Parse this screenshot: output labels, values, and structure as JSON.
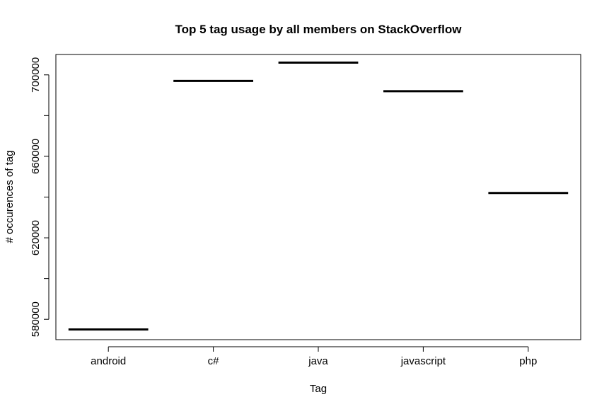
{
  "chart_data": {
    "type": "line",
    "title": "Top 5 tag usage by all members on StackOverflow",
    "xlabel": "Tag",
    "ylabel": "# occurences of tag",
    "categories": [
      "android",
      "c#",
      "java",
      "javascript",
      "php"
    ],
    "values": [
      575000,
      697000,
      706000,
      692000,
      642000
    ],
    "ylim": [
      570000,
      710000
    ],
    "yticks": [
      {
        "value": 580000,
        "label": "580000"
      },
      {
        "value": 620000,
        "label": "620000"
      },
      {
        "value": 660000,
        "label": "660000"
      },
      {
        "value": 700000,
        "label": "700000"
      }
    ],
    "grid": false,
    "legend": "none",
    "colors": {
      "line": "#000000",
      "axis": "#000000",
      "background": "#ffffff"
    }
  }
}
